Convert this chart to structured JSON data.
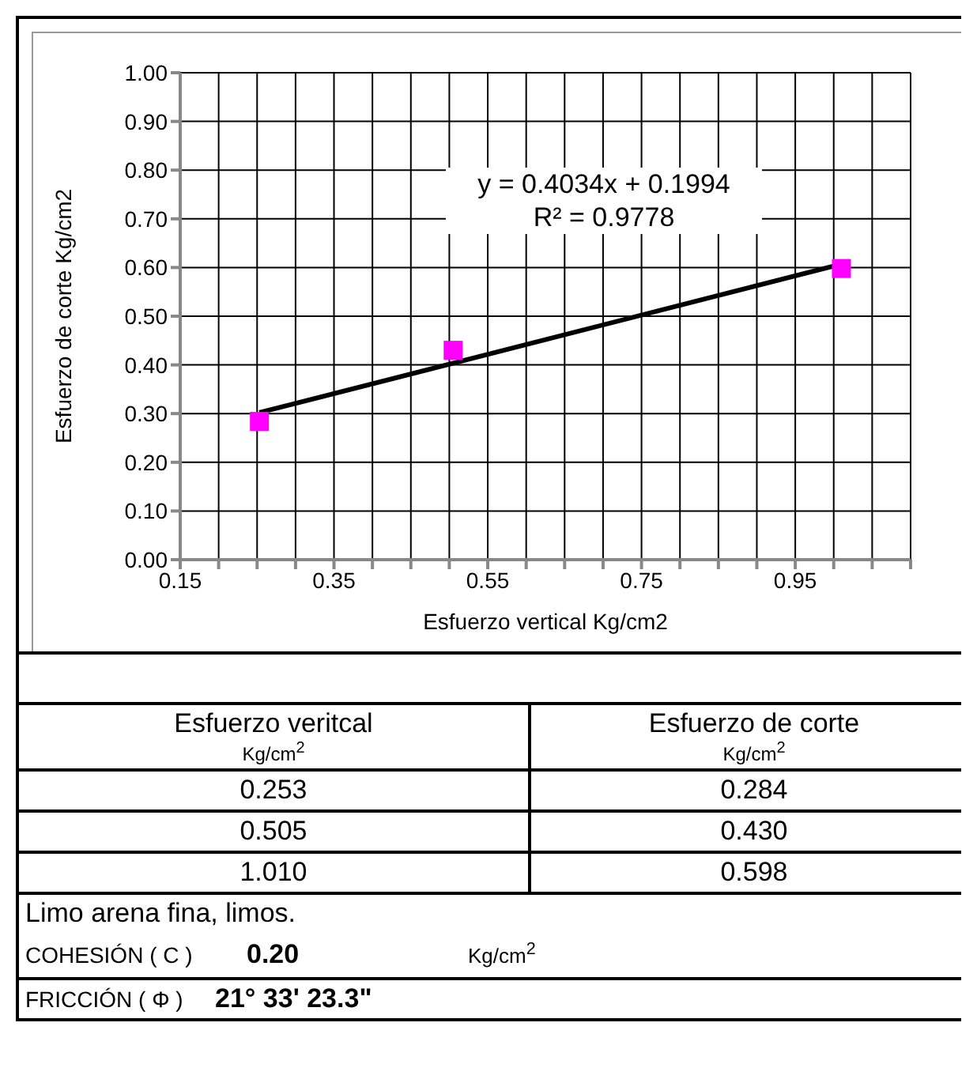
{
  "chart_data": {
    "type": "scatter",
    "xlabel": "Esfuerzo vertical Kg/cm2",
    "ylabel": "Esfuerzo  de corte Kg/cm2",
    "xlim": [
      0.15,
      1.1
    ],
    "xticks": [
      0.15,
      {
        "value": 0.2,
        "label": null
      },
      {
        "value": 0.25,
        "label": null
      },
      {
        "value": 0.3,
        "label": null
      },
      0.35,
      {
        "value": 0.4,
        "label": null
      },
      {
        "value": 0.45,
        "label": null
      },
      {
        "value": 0.5,
        "label": null
      },
      0.55,
      {
        "value": 0.6,
        "label": null
      },
      {
        "value": 0.65,
        "label": null
      },
      {
        "value": 0.7,
        "label": null
      },
      0.75,
      {
        "value": 0.8,
        "label": null
      },
      {
        "value": 0.85,
        "label": null
      },
      {
        "value": 0.9,
        "label": null
      },
      0.95,
      {
        "value": 1.0,
        "label": null
      },
      {
        "value": 1.05,
        "label": null
      },
      {
        "value": 1.1,
        "label": null
      }
    ],
    "ylim": [
      0,
      1
    ],
    "yticks": [
      {
        "value": 0,
        "label": "0.00"
      },
      {
        "value": 0.1,
        "label": "0.10"
      },
      {
        "value": 0.2,
        "label": "0.20"
      },
      {
        "value": 0.3,
        "label": "0.30"
      },
      {
        "value": 0.4,
        "label": "0.40"
      },
      {
        "value": 0.5,
        "label": "0.50"
      },
      {
        "value": 0.6,
        "label": "0.60"
      },
      {
        "value": 0.7,
        "label": "0.70"
      },
      {
        "value": 0.8,
        "label": "0.80"
      },
      {
        "value": 0.9,
        "label": "0.90"
      },
      {
        "value": 1,
        "label": "1.00"
      }
    ],
    "grid": true,
    "legend": false,
    "series": [
      {
        "type": "scatter",
        "color": "#ff00ff",
        "marker": "square",
        "x": [
          0.253,
          0.505,
          1.01
        ],
        "values": [
          0.284,
          0.43,
          0.598
        ]
      },
      {
        "type": "line",
        "color": "#000000",
        "marker": "none",
        "x": [
          0.253,
          1.01
        ],
        "values": [
          0.302,
          0.607
        ]
      }
    ],
    "annotations": [
      "y = 0.4034x + 0.1994",
      "R² = 0.9778",
      "Esfuerzo veritcal",
      "Kg/cm$^{2}$",
      "Esfuerzo de corte",
      "Kg/cm$^{2}$",
      "0.253",
      "0.284",
      "0.505",
      "0.430",
      "1.010",
      "0.598",
      "Limo arena fina, limos.",
      "COHESIÓN ( C )",
      "0.20",
      "Kg/cm$^{2}$",
      "FRICCIÓN ( Φ )",
      "21° 33' 23.3\""
    ]
  }
}
